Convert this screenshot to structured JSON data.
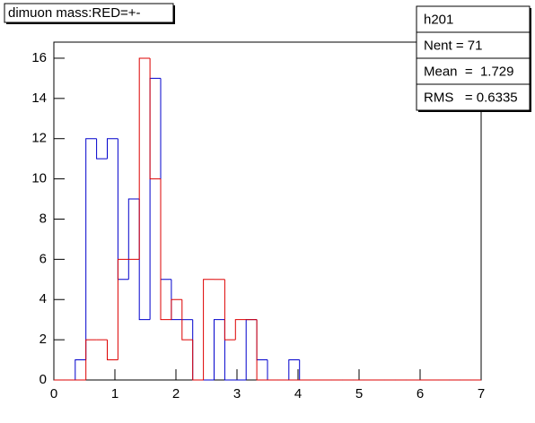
{
  "chart_data": {
    "type": "histogram",
    "title": "dimuon mass:RED=+-",
    "bins": [
      0,
      0.175,
      0.35,
      0.525,
      0.7,
      0.875,
      1.05,
      1.225,
      1.4,
      1.575,
      1.75,
      1.925,
      2.1,
      2.275,
      2.45,
      2.625,
      2.8,
      2.975,
      3.15,
      3.325,
      3.5,
      3.675,
      3.85,
      4.025,
      4.2,
      4.375,
      4.55,
      4.725,
      4.9,
      5.075,
      5.25,
      5.425,
      5.6,
      5.775,
      5.95,
      6.125,
      6.3,
      6.475,
      6.65,
      6.825,
      7
    ],
    "series": [
      {
        "color": "#0000cc",
        "values": [
          0,
          0,
          1,
          12,
          11,
          12,
          5,
          9,
          3,
          15,
          5,
          3,
          3,
          0,
          0,
          3,
          0,
          0,
          3,
          1,
          0,
          0,
          1,
          0,
          0,
          0,
          0,
          0,
          0,
          0,
          0,
          0,
          0,
          0,
          0,
          0,
          0,
          0,
          0,
          0
        ]
      },
      {
        "color": "#dd0000",
        "values": [
          0,
          0,
          0,
          2,
          2,
          1,
          6,
          6,
          16,
          10,
          3,
          4,
          2,
          0,
          5,
          5,
          2,
          3,
          3,
          0,
          0,
          0,
          0,
          0,
          0,
          0,
          0,
          0,
          0,
          0,
          0,
          0,
          0,
          0,
          0,
          0,
          0,
          0,
          0,
          0
        ]
      }
    ],
    "xlim": [
      0,
      7
    ],
    "xticks": [
      0,
      1,
      2,
      3,
      4,
      5,
      6,
      7
    ],
    "ylim": [
      0,
      16.8
    ],
    "yticks": [
      0,
      2,
      4,
      6,
      8,
      10,
      12,
      14,
      16
    ],
    "stats": [
      "h201",
      "Nent = 71",
      "Mean  =  1.729",
      "RMS   = 0.6335"
    ]
  }
}
